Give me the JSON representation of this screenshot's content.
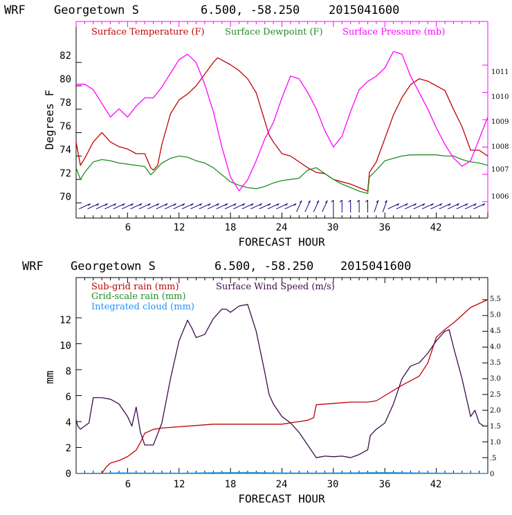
{
  "chart_data": [
    {
      "type": "line",
      "header": {
        "model": "WRF",
        "location": "Georgetown S",
        "coords": "6.500, -58.250",
        "init": "2015041600"
      },
      "xlabel": "FORECAST HOUR",
      "ylabel": "Degrees F",
      "xlim": [
        0,
        48
      ],
      "x_ticks": [
        "6",
        "12",
        "18",
        "24",
        "30",
        "36",
        "42"
      ],
      "ylim": [
        68.7,
        85.5
      ],
      "y_ticks": [
        "70",
        "72",
        "74",
        "76",
        "78",
        "80",
        "82"
      ],
      "y2lim": [
        1005.4,
        1012.6
      ],
      "y2_ticks": [
        "1006",
        "1007",
        "1008",
        "1009",
        "1010",
        "1011"
      ],
      "series": [
        {
          "name": "Surface Temperature (F)",
          "color": "#c00000",
          "axis": "left",
          "x": [
            0,
            0.5,
            1,
            2,
            3,
            4,
            5,
            6,
            7,
            8,
            8.7,
            9,
            9.5,
            10,
            11,
            12,
            13,
            14,
            15,
            16,
            16.5,
            17,
            18,
            19,
            20,
            21,
            22,
            22.5,
            23,
            24,
            25,
            26,
            27,
            28,
            29,
            30,
            31,
            32,
            33,
            34,
            34.2,
            35,
            36,
            37,
            38,
            39,
            40,
            41,
            42,
            43,
            44,
            45,
            46,
            47,
            48
          ],
          "values": [
            75.2,
            73.2,
            73.8,
            75.2,
            76.0,
            75.2,
            74.8,
            74.6,
            74.2,
            74.2,
            73.0,
            72.8,
            73.2,
            75.0,
            77.6,
            78.8,
            79.3,
            80.0,
            81.0,
            82.0,
            82.4,
            82.2,
            81.8,
            81.3,
            80.6,
            79.4,
            77.0,
            75.8,
            75.2,
            74.2,
            74.0,
            73.5,
            73.0,
            72.6,
            72.5,
            72.0,
            71.8,
            71.6,
            71.3,
            71.0,
            72.6,
            73.5,
            75.5,
            77.5,
            79.0,
            80.1,
            80.6,
            80.4,
            80.0,
            79.6,
            78.0,
            76.5,
            74.5,
            74.5,
            74.0
          ]
        },
        {
          "name": "Surface Dewpoint (F)",
          "color": "#228b22",
          "axis": "left",
          "x": [
            0,
            0.5,
            1,
            2,
            3,
            4,
            5,
            6,
            7,
            8,
            8.7,
            9,
            9.5,
            10,
            11,
            12,
            13,
            14,
            15,
            16,
            17,
            18,
            19,
            20,
            21,
            22,
            23,
            24,
            25,
            26,
            27,
            28,
            29,
            30,
            31,
            32,
            33,
            34,
            34.2,
            35,
            36,
            37,
            38,
            39,
            40,
            41,
            42,
            43,
            44,
            45,
            46,
            47,
            48
          ],
          "values": [
            73.0,
            72.0,
            72.6,
            73.5,
            73.7,
            73.6,
            73.4,
            73.3,
            73.2,
            73.1,
            72.4,
            72.6,
            73.0,
            73.4,
            73.8,
            74.0,
            73.9,
            73.6,
            73.4,
            73.0,
            72.4,
            71.8,
            71.5,
            71.3,
            71.2,
            71.4,
            71.7,
            71.9,
            72.0,
            72.1,
            72.8,
            73.0,
            72.5,
            72.0,
            71.6,
            71.3,
            71.0,
            70.8,
            72.2,
            72.8,
            73.6,
            73.8,
            74.0,
            74.1,
            74.1,
            74.1,
            74.1,
            74.0,
            74.0,
            73.7,
            73.5,
            73.4,
            73.2
          ]
        },
        {
          "name": "Surface Pressure (mb)",
          "color": "#ff00ff",
          "axis": "right",
          "x": [
            0,
            1,
            2,
            3,
            4,
            5,
            6,
            7,
            8,
            9,
            10,
            11,
            12,
            13,
            14,
            15,
            16,
            17,
            18,
            19,
            20,
            21,
            22,
            23,
            24,
            25,
            26,
            27,
            28,
            29,
            30,
            31,
            32,
            33,
            34,
            35,
            36,
            37,
            38,
            39,
            40,
            41,
            42,
            43,
            44,
            45,
            46,
            47,
            48
          ],
          "values": [
            1010.3,
            1010.3,
            1010.1,
            1009.6,
            1009.1,
            1009.4,
            1009.1,
            1009.5,
            1009.8,
            1009.8,
            1010.2,
            1010.7,
            1011.2,
            1011.4,
            1011.1,
            1010.3,
            1009.3,
            1008.0,
            1006.9,
            1006.4,
            1006.8,
            1007.5,
            1008.3,
            1008.9,
            1009.8,
            1010.6,
            1010.5,
            1010.0,
            1009.4,
            1008.6,
            1008.0,
            1008.4,
            1009.3,
            1010.1,
            1010.4,
            1010.6,
            1010.9,
            1011.5,
            1011.4,
            1010.6,
            1010.0,
            1009.4,
            1008.7,
            1008.1,
            1007.6,
            1007.3,
            1007.5,
            1008.3,
            1009.1
          ]
        }
      ],
      "wind_barb_color": "#000080"
    },
    {
      "type": "line",
      "header": {
        "model": "WRF",
        "location": "Georgetown S",
        "coords": "6.500, -58.250",
        "init": "2015041600"
      },
      "xlabel": "FORECAST HOUR",
      "ylabel": "mm",
      "xlim": [
        0,
        48
      ],
      "x_ticks": [
        "6",
        "12",
        "18",
        "24",
        "30",
        "36",
        "42"
      ],
      "ylim": [
        0,
        15.1
      ],
      "y_ticks": [
        "0",
        "2",
        "4",
        "6",
        "8",
        "10",
        "12"
      ],
      "y2lim": [
        0,
        6.2
      ],
      "y2_ticks": [
        "0",
        ".5",
        "1.0",
        "1.5",
        "2.0",
        "2.5",
        "3.0",
        "3.5",
        "4.0",
        "4.5",
        "5.0",
        "5.5"
      ],
      "series": [
        {
          "name": "Sub-grid rain (mm)",
          "color": "#c00000",
          "axis": "left",
          "x": [
            0,
            3,
            3.5,
            4,
            5,
            6,
            7,
            7.5,
            8,
            9,
            10,
            12,
            14,
            16,
            18,
            20,
            22,
            24,
            25,
            26,
            27,
            27.7,
            28,
            30,
            32,
            34,
            35,
            36,
            38,
            40,
            41,
            42,
            43,
            44,
            45,
            46,
            47,
            48
          ],
          "values": [
            0,
            0,
            0.5,
            0.8,
            1.0,
            1.3,
            1.8,
            2.4,
            3.1,
            3.4,
            3.5,
            3.6,
            3.7,
            3.8,
            3.8,
            3.8,
            3.8,
            3.8,
            3.9,
            4.0,
            4.1,
            4.3,
            5.3,
            5.4,
            5.5,
            5.5,
            5.6,
            6.0,
            6.8,
            7.5,
            8.5,
            10.5,
            11.1,
            11.6,
            12.2,
            12.8,
            13.1,
            13.4
          ]
        },
        {
          "name": "Grid-scale rain (mm)",
          "color": "#228b22",
          "axis": "left",
          "x": [
            0,
            48
          ],
          "values": [
            0,
            0
          ]
        },
        {
          "name": "Integrated cloud (mm)",
          "color": "#1e90ff",
          "axis": "left",
          "x": [
            0,
            3,
            5,
            8,
            12,
            16,
            20,
            24,
            28,
            32,
            36,
            40,
            44,
            48
          ],
          "values": [
            0,
            0.02,
            0.05,
            0.03,
            0.02,
            0.06,
            0.08,
            0.04,
            0.03,
            0.05,
            0.07,
            0.04,
            0.02,
            0.0
          ]
        },
        {
          "name": "Surface Wind Speed (m/s)",
          "color": "#3b0a4a",
          "axis": "right",
          "x": [
            0,
            0.2,
            0.5,
            1,
            1.5,
            2,
            3,
            4,
            5,
            6,
            6.5,
            7,
            7.5,
            8,
            9,
            10,
            11,
            12,
            13,
            13.5,
            14,
            15,
            16,
            17,
            17.5,
            18,
            19,
            20,
            21,
            22,
            22.5,
            23,
            23.5,
            24,
            25,
            26,
            27,
            28,
            29,
            30,
            31,
            32,
            33,
            34,
            34.3,
            35,
            36,
            37,
            38,
            39,
            40,
            41,
            42,
            43,
            43.5,
            44,
            45,
            46,
            46.5,
            47,
            47.5,
            48
          ],
          "values": [
            1.7,
            1.5,
            1.4,
            1.5,
            1.6,
            2.4,
            2.4,
            2.35,
            2.2,
            1.8,
            1.5,
            2.1,
            1.3,
            0.9,
            0.9,
            1.6,
            3.0,
            4.2,
            4.85,
            4.6,
            4.3,
            4.4,
            4.9,
            5.2,
            5.2,
            5.1,
            5.3,
            5.35,
            4.5,
            3.2,
            2.5,
            2.2,
            2.0,
            1.8,
            1.6,
            1.3,
            0.9,
            0.5,
            0.55,
            0.53,
            0.55,
            0.5,
            0.6,
            0.75,
            1.2,
            1.4,
            1.6,
            2.2,
            3.0,
            3.4,
            3.5,
            3.8,
            4.2,
            4.5,
            4.55,
            4.0,
            3.0,
            1.8,
            2.0,
            1.6,
            1.5,
            1.5
          ]
        }
      ]
    }
  ]
}
